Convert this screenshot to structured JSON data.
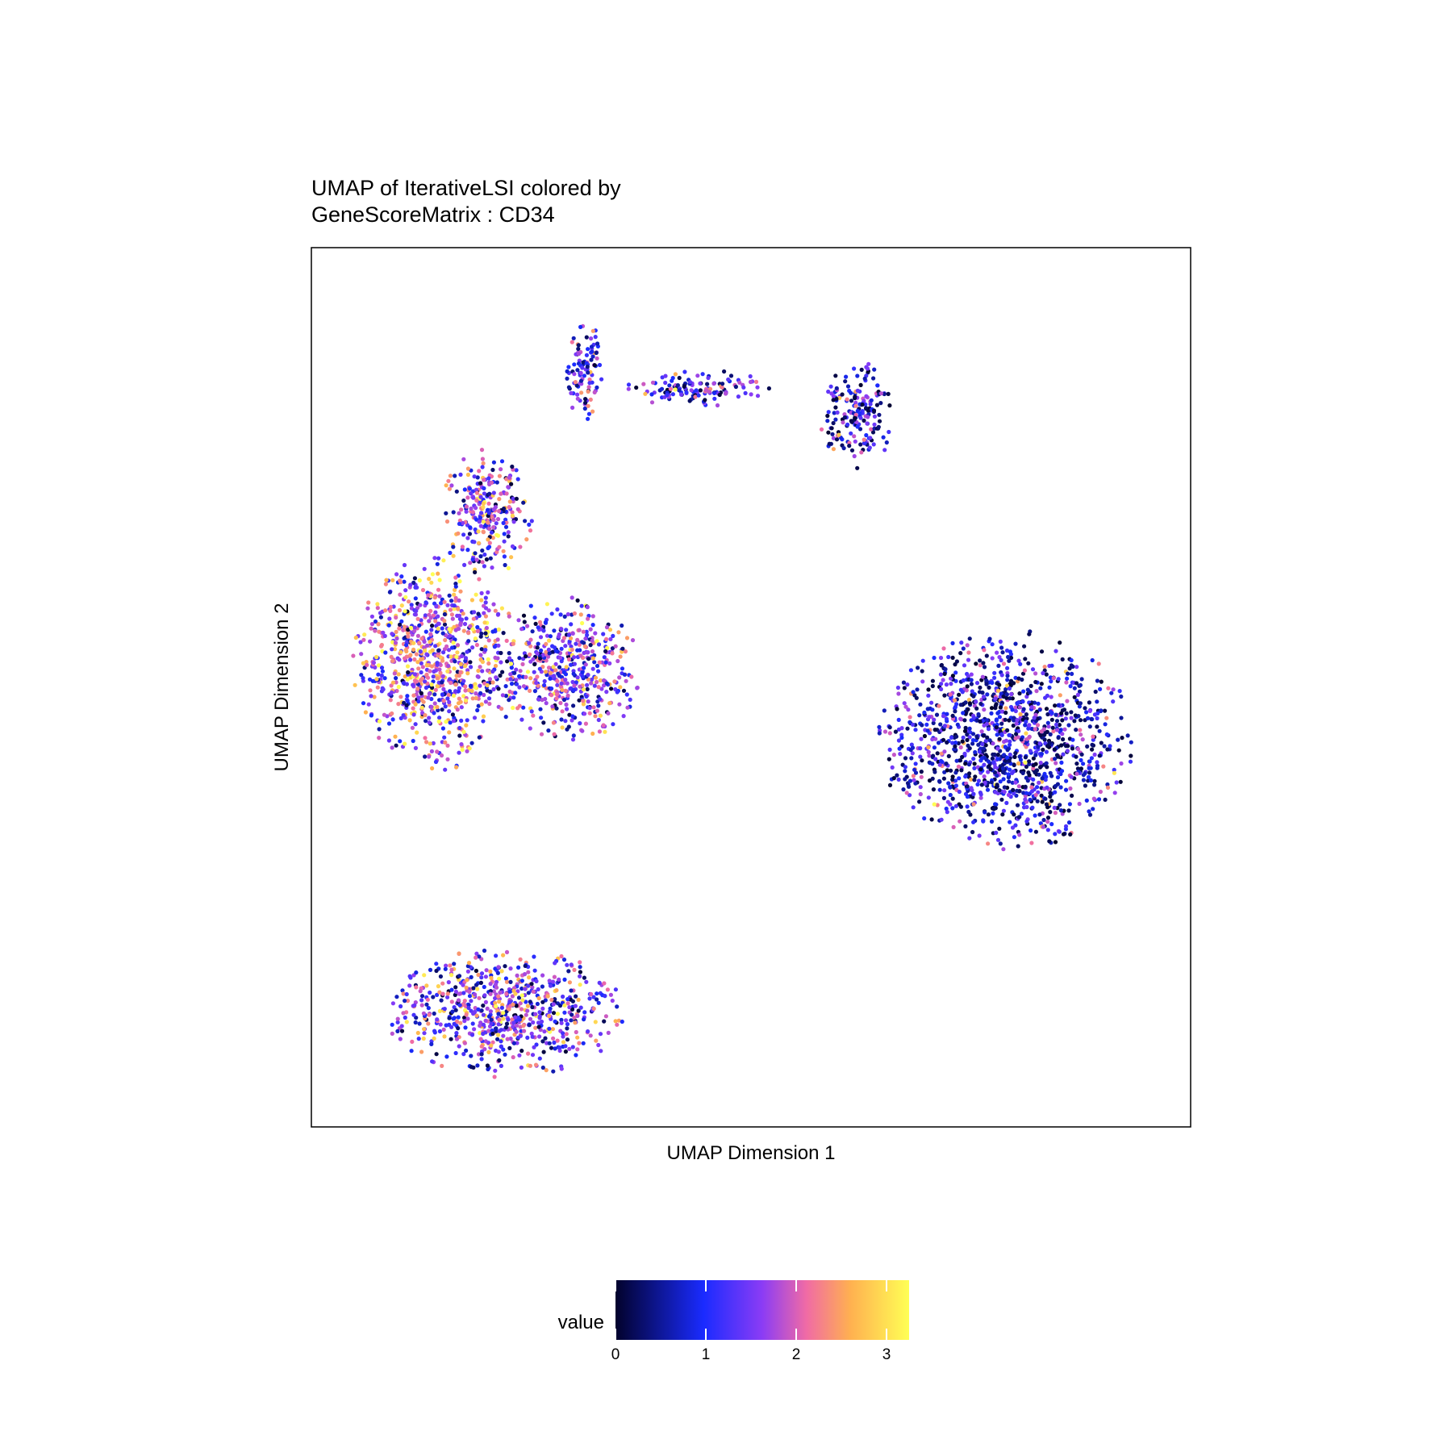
{
  "chart_data": {
    "type": "scatter",
    "title_lines": [
      "UMAP of IterativeLSI colored by",
      "GeneScoreMatrix : CD34"
    ],
    "xlabel": "UMAP Dimension 1",
    "ylabel": "UMAP Dimension 2",
    "grid": false,
    "axis_ticks_shown": false,
    "colorscale": {
      "title": "value",
      "min": 0,
      "max": 3.25,
      "ticks": [
        0,
        1,
        2,
        3
      ],
      "tick_labels": [
        "0",
        "1",
        "2",
        "3"
      ],
      "colors": [
        "#02022c",
        "#1a2bff",
        "#8b3cf5",
        "#f06ba5",
        "#ffb050",
        "#ffff55"
      ],
      "placement": "bottom"
    },
    "clusters": [
      {
        "label": "left-upper-stalk",
        "cx": 0.31,
        "cy": 0.86,
        "rx": 0.02,
        "ry": 0.06,
        "mean": 1.3
      },
      {
        "label": "left-arc-mid",
        "cx": 0.2,
        "cy": 0.7,
        "rx": 0.05,
        "ry": 0.07,
        "mean": 1.6
      },
      {
        "label": "left-main",
        "cx": 0.14,
        "cy": 0.53,
        "rx": 0.09,
        "ry": 0.12,
        "mean": 1.8
      },
      {
        "label": "left-arm",
        "cx": 0.29,
        "cy": 0.52,
        "rx": 0.08,
        "ry": 0.08,
        "mean": 1.5
      },
      {
        "label": "left-lower",
        "cx": 0.22,
        "cy": 0.13,
        "rx": 0.13,
        "ry": 0.07,
        "mean": 1.4
      },
      {
        "label": "top-bridge",
        "cx": 0.44,
        "cy": 0.84,
        "rx": 0.08,
        "ry": 0.02,
        "mean": 1.1
      },
      {
        "label": "top-right-small",
        "cx": 0.62,
        "cy": 0.81,
        "rx": 0.04,
        "ry": 0.06,
        "mean": 0.9
      },
      {
        "label": "right-main",
        "cx": 0.79,
        "cy": 0.44,
        "rx": 0.14,
        "ry": 0.12,
        "mean": 0.8
      }
    ]
  }
}
